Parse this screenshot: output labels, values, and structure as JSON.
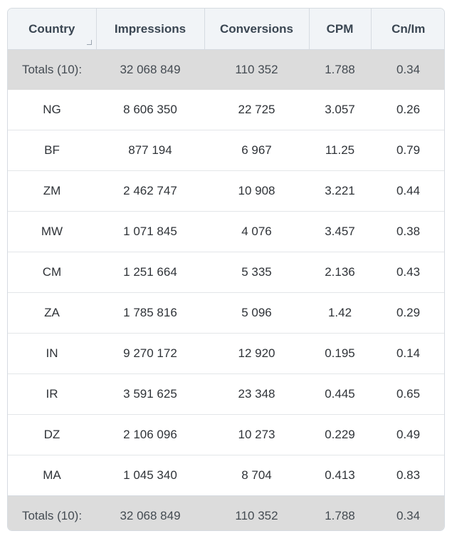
{
  "columns": [
    "Country",
    "Impressions",
    "Conversions",
    "CPM",
    "Cn/Im"
  ],
  "totals": {
    "label": "Totals (10):",
    "impressions": "32 068 849",
    "conversions": "110 352",
    "cpm": "1.788",
    "cn_im": "0.34"
  },
  "rows": [
    {
      "country": "NG",
      "impressions": "8 606 350",
      "conversions": "22 725",
      "cpm": "3.057",
      "cn_im": "0.26"
    },
    {
      "country": "BF",
      "impressions": "877 194",
      "conversions": "6 967",
      "cpm": "11.25",
      "cn_im": "0.79"
    },
    {
      "country": "ZM",
      "impressions": "2 462 747",
      "conversions": "10 908",
      "cpm": "3.221",
      "cn_im": "0.44"
    },
    {
      "country": "MW",
      "impressions": "1 071 845",
      "conversions": "4 076",
      "cpm": "3.457",
      "cn_im": "0.38"
    },
    {
      "country": "CM",
      "impressions": "1 251 664",
      "conversions": "5 335",
      "cpm": "2.136",
      "cn_im": "0.43"
    },
    {
      "country": "ZA",
      "impressions": "1 785 816",
      "conversions": "5 096",
      "cpm": "1.42",
      "cn_im": "0.29"
    },
    {
      "country": "IN",
      "impressions": "9 270 172",
      "conversions": "12 920",
      "cpm": "0.195",
      "cn_im": "0.14"
    },
    {
      "country": "IR",
      "impressions": "3 591 625",
      "conversions": "23 348",
      "cpm": "0.445",
      "cn_im": "0.65"
    },
    {
      "country": "DZ",
      "impressions": "2 106 096",
      "conversions": "10 273",
      "cpm": "0.229",
      "cn_im": "0.49"
    },
    {
      "country": "MA",
      "impressions": "1 045 340",
      "conversions": "8 704",
      "cpm": "0.413",
      "cn_im": "0.83"
    }
  ]
}
